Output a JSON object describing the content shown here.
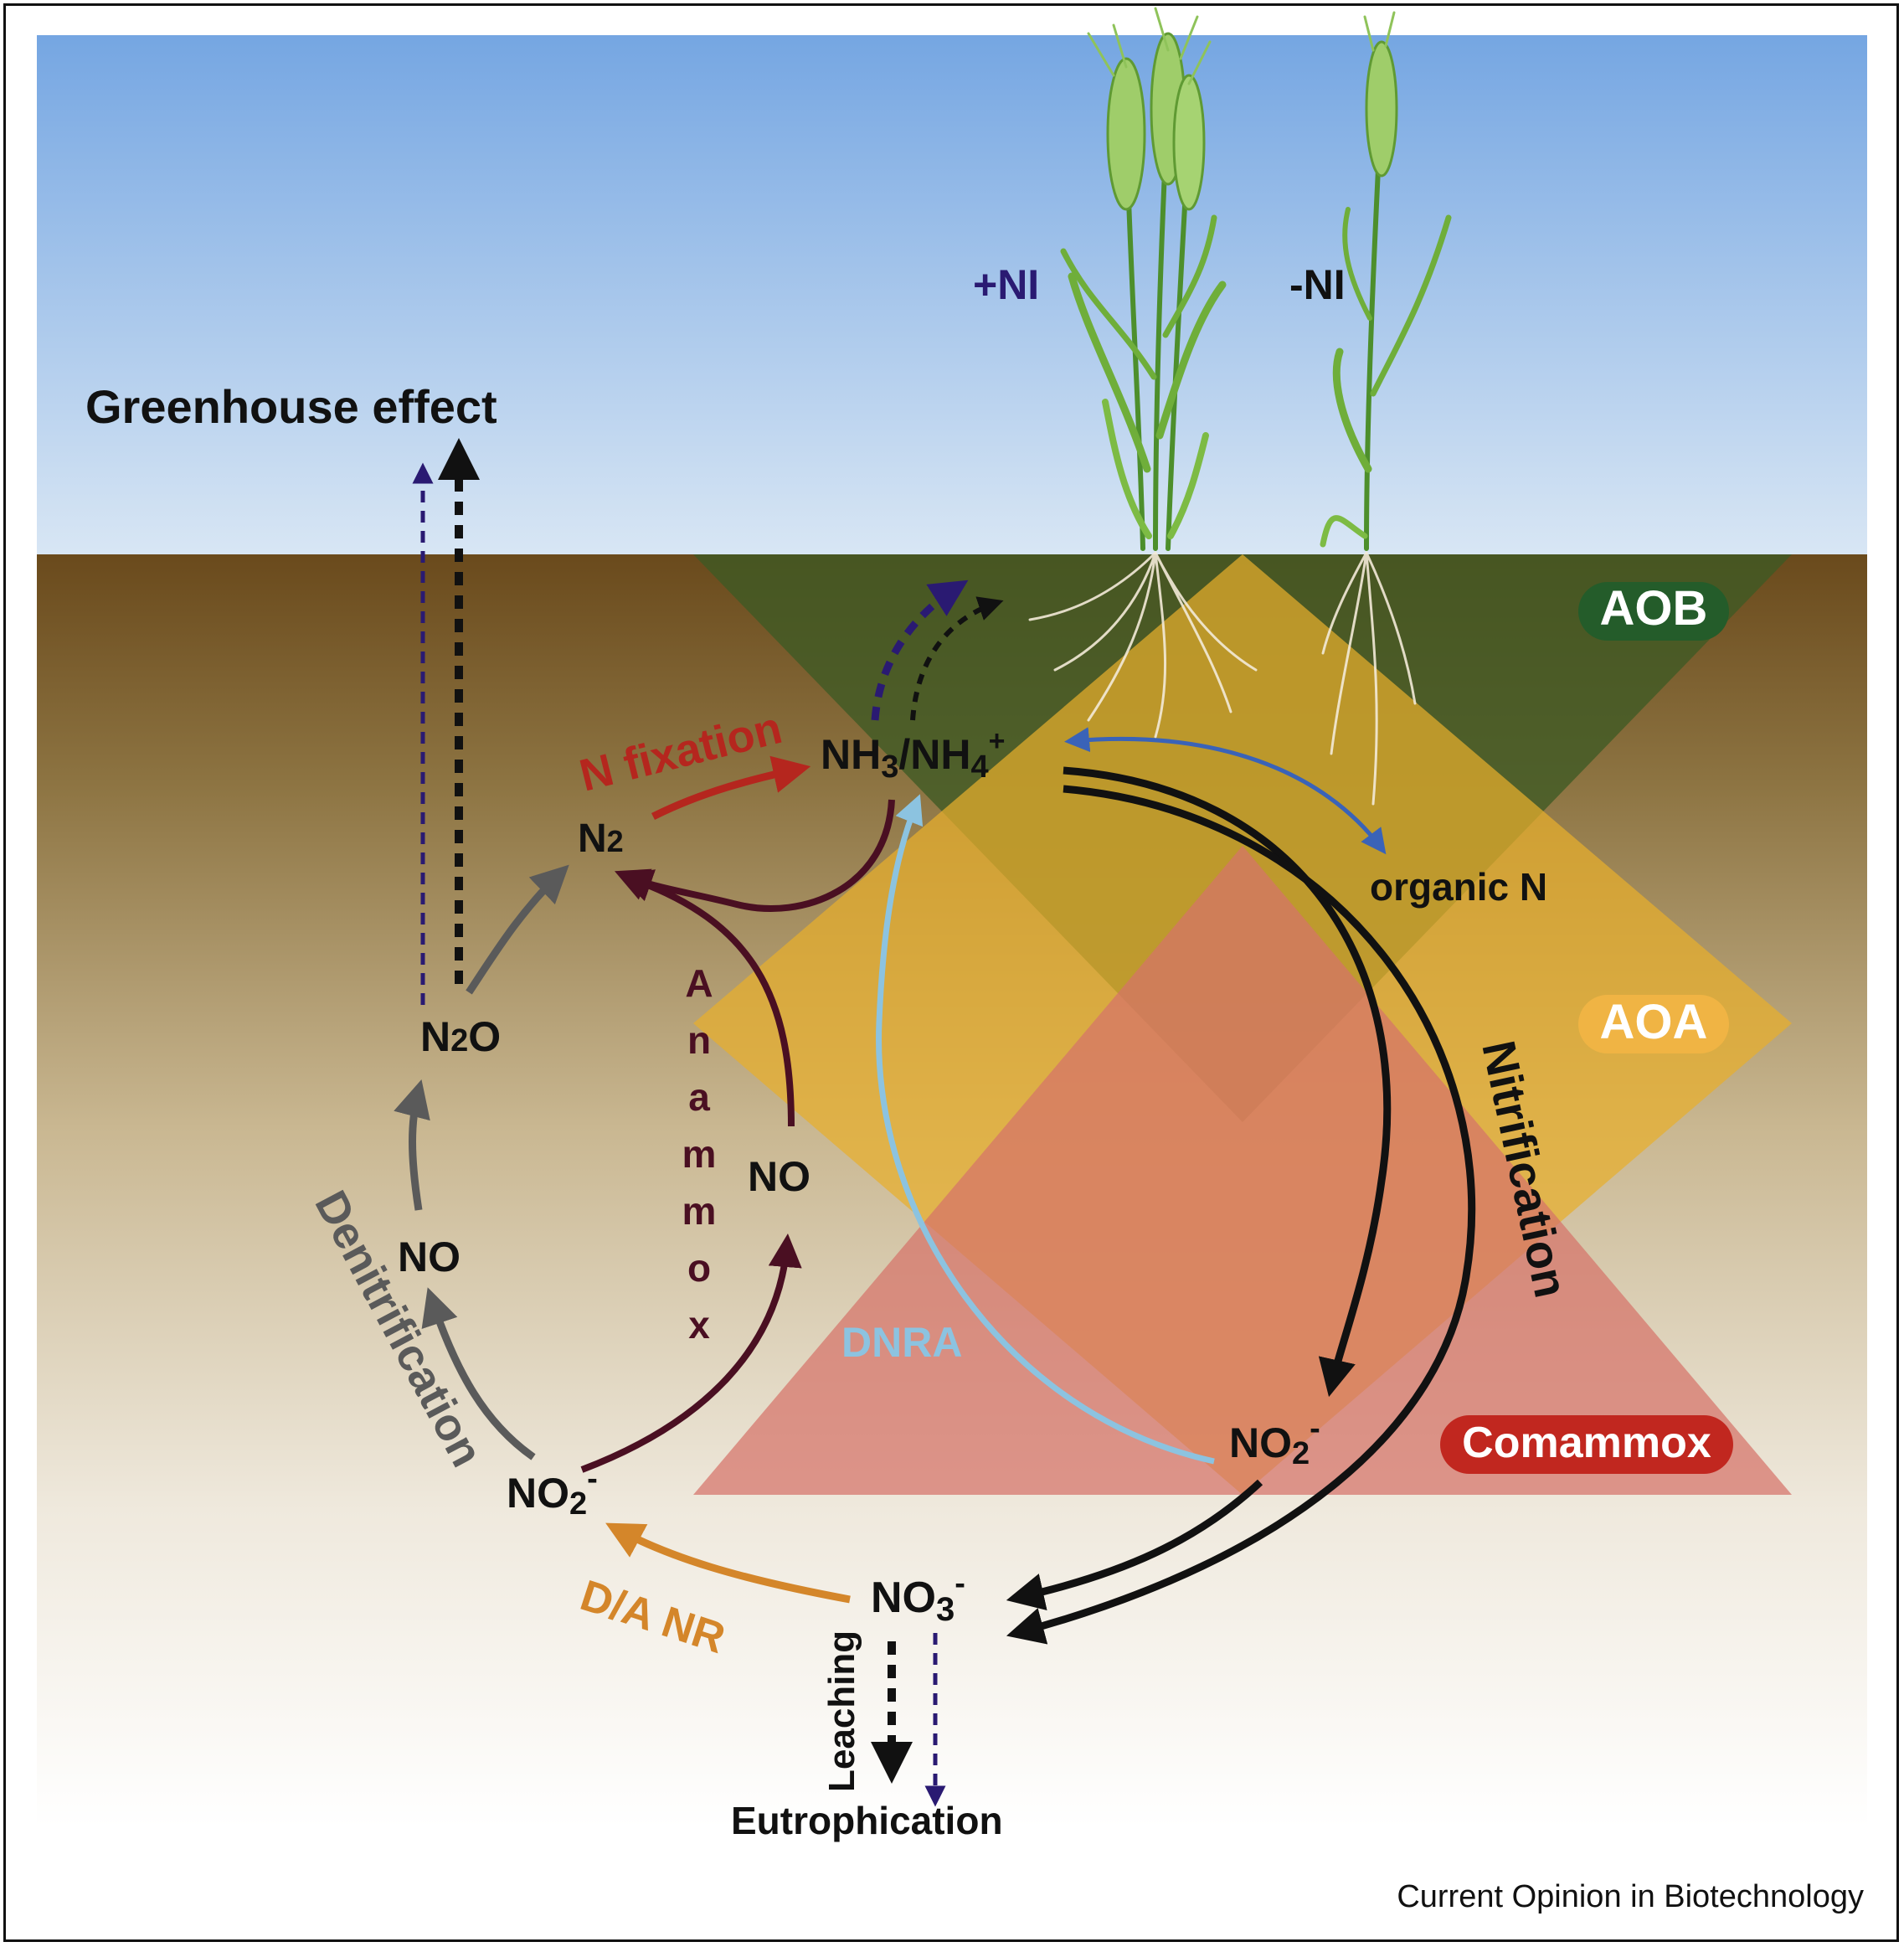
{
  "labels": {
    "greenhouse": "Greenhouse effect",
    "plus_ni": "+NI",
    "minus_ni": "-NI",
    "aob": "AOB",
    "aoa": "AOA",
    "comammox": "Comammox",
    "n_fixation": "N fixation",
    "n2_main": "N",
    "n2_sub": "2",
    "nh3": "NH",
    "nh3_sub": "3",
    "nh4": "/NH",
    "nh4_sub": "4",
    "nh4_sup": "+",
    "organic_n": "organic N",
    "anammox_letters": [
      "A",
      "n",
      "a",
      "m",
      "m",
      "o",
      "x"
    ],
    "no_anammox": "NO",
    "no_denit": "NO",
    "n2o_n": "N",
    "n2o_sub": "2",
    "n2o_o": "O",
    "denitrification": "Denitrification",
    "nitrification": "Nitrification",
    "dnra": "DNRA",
    "no2_left": "NO",
    "no2_left_sub": "2",
    "no2_left_sup": "-",
    "no2_right": "NO",
    "no2_right_sub": "2",
    "no2_right_sup": "-",
    "no3": "NO",
    "no3_sub": "3",
    "no3_sup": "-",
    "danr": "D/A NR",
    "leaching": "Leaching",
    "eutrophication": "Eutrophication",
    "credit": "Current Opinion in Biotechnology"
  },
  "colors": {
    "sky_top": "#7aa9e3",
    "sky_bottom": "#cfe0f3",
    "soil_top": "#6a4a1e",
    "soil_bottom": "#ffffff",
    "aob_zone": "#3d5a24",
    "aoa_zone": "#e8ae2c",
    "comammox_zone": "#d6736a",
    "aob_badge": "#245c2a",
    "aoa_badge": "#f0b444",
    "comammox_badge": "#c1271f",
    "n_fixation": "#b5261e",
    "anammox": "#4a0f22",
    "denitrification": "#5a5a5a",
    "nitrification": "#111111",
    "dnra": "#8cc3e0",
    "danr": "#d4862a",
    "ni_treatment": "#2a1a72",
    "organic_exchange": "#3a63b8"
  }
}
